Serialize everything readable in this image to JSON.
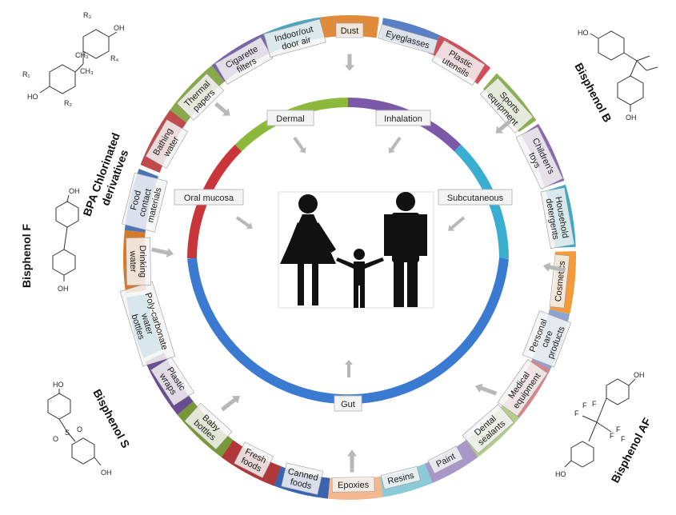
{
  "exposure_sources": [
    {
      "text": "Dust",
      "color": "#e08a3c",
      "angle": 0,
      "r": 273
    },
    {
      "text": "Eyeglasses",
      "color": "#5b7fc4",
      "angle": 16,
      "r": 273
    },
    {
      "text": "Plastic utensils",
      "color": "#d04e5a",
      "angle": 31,
      "r": 273
    },
    {
      "text": "Sports equipment",
      "color": "#8cb04c",
      "angle": 48,
      "r": 273
    },
    {
      "text": "Children's toys",
      "color": "#8a6ab0",
      "angle": 64,
      "r": 273
    },
    {
      "text": "Household detergents",
      "color": "#3aa9c4",
      "angle": 80,
      "r": 273
    },
    {
      "text": "Cosmetics",
      "color": "#f39a3a",
      "angle": 96,
      "r": 273
    },
    {
      "text": "Personal care products",
      "color": "#8ca6d4",
      "angle": 111,
      "r": 273
    },
    {
      "text": "Medical equipment",
      "color": "#d8868a",
      "angle": 125,
      "r": 273
    },
    {
      "text": "Dental sealants",
      "color": "#b4cc8a",
      "angle": 139,
      "r": 273
    },
    {
      "text": "Paint",
      "color": "#a898c8",
      "angle": 153,
      "r": 273
    },
    {
      "text": "Resins",
      "color": "#8ccad8",
      "angle": 166,
      "r": 273
    },
    {
      "text": "Epoxies",
      "color": "#f4b890",
      "angle": 179,
      "r": 273
    },
    {
      "text": "Canned foods",
      "color": "#3a64b0",
      "angle": 193,
      "r": 273
    },
    {
      "text": "Fresh foods",
      "color": "#b0383a",
      "angle": 207,
      "r": 273
    },
    {
      "text": "Baby bottles",
      "color": "#789838",
      "angle": 222,
      "r": 273
    },
    {
      "text": "Plastic wraps",
      "color": "#6a4c90",
      "angle": 237,
      "r": 273
    },
    {
      "text": "Poly-carbonate water bottles",
      "color": "#3a9ab8",
      "angle": 253,
      "r": 273
    },
    {
      "text": "Drinking water",
      "color": "#d47a28",
      "angle": 269,
      "r": 273
    },
    {
      "text": "Food contact materials",
      "color": "#4a76b8",
      "angle": 284,
      "r": 273
    },
    {
      "text": "Bathing water",
      "color": "#c04a4c",
      "angle": 300,
      "r": 273
    },
    {
      "text": "Thermal papers",
      "color": "#88a84a",
      "angle": 315,
      "r": 273
    },
    {
      "text": "Cigarette filters",
      "color": "#7a64a8",
      "angle": 330,
      "r": 273
    },
    {
      "text": "Indoor/out door air",
      "color": "#4aa6c0",
      "angle": 345,
      "r": 273
    }
  ],
  "routes": [
    {
      "text": "Dermal"
    },
    {
      "text": "Inhalation"
    },
    {
      "text": "Subcutaneous"
    },
    {
      "text": "Oral mucosa"
    },
    {
      "text": "Gut"
    }
  ],
  "compounds": [
    {
      "text": "BPA Chlorinated derivatives"
    },
    {
      "text": "Bisphenol B"
    },
    {
      "text": "Bisphenol F"
    },
    {
      "text": "Bisphenol S"
    },
    {
      "text": "Bisphenol AF"
    }
  ],
  "chem_labels": {
    "oh": "OH",
    "ho": "HO",
    "ch3": "CH₃",
    "r1": "R₁",
    "r2": "R₂",
    "r3": "R₃",
    "r4": "R₄",
    "s": "S",
    "o": "O",
    "f": "F"
  }
}
